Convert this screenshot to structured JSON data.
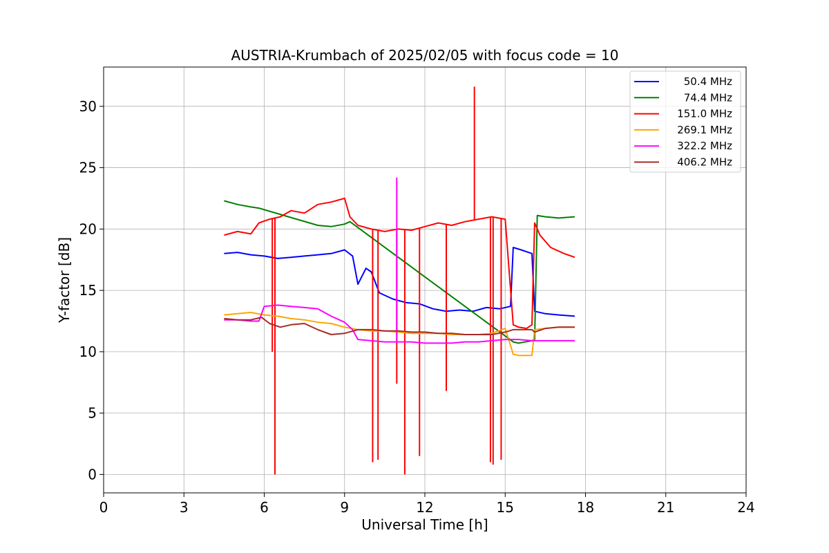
{
  "chart_data": {
    "type": "line",
    "title": "AUSTRIA-Krumbach of 2025/02/05 with focus code = 10",
    "xlabel": "Universal Time [h]",
    "ylabel": "Y-factor [dB]",
    "xlim": [
      0,
      24
    ],
    "ylim": [
      -1.5,
      33.2
    ],
    "xticks": [
      0,
      3,
      6,
      9,
      12,
      15,
      18,
      21,
      24
    ],
    "yticks": [
      0,
      5,
      10,
      15,
      20,
      25,
      30
    ],
    "grid": true,
    "legend_position": "top-right",
    "series": [
      {
        "name": " 50.4 MHz",
        "color": "#0000ff",
        "x": [
          4.5,
          5.0,
          5.5,
          6.0,
          6.5,
          7.0,
          7.5,
          8.0,
          8.5,
          9.0,
          9.3,
          9.5,
          9.8,
          10.0,
          10.3,
          10.8,
          11.3,
          11.8,
          12.3,
          12.8,
          13.3,
          13.8,
          14.3,
          14.8,
          15.2,
          15.3,
          15.6,
          16.0,
          16.1,
          16.5,
          17.0,
          17.6
        ],
        "y": [
          18.0,
          18.1,
          17.9,
          17.8,
          17.6,
          17.7,
          17.8,
          17.9,
          18.0,
          18.3,
          17.8,
          15.5,
          16.8,
          16.5,
          14.8,
          14.3,
          14.0,
          13.9,
          13.5,
          13.3,
          13.4,
          13.3,
          13.6,
          13.5,
          13.7,
          18.5,
          18.3,
          18.0,
          13.3,
          13.1,
          13.0,
          12.9
        ]
      },
      {
        "name": " 74.4 MHz",
        "color": "#008000",
        "x": [
          4.5,
          5.0,
          5.5,
          5.8,
          8.0,
          8.5,
          9.0,
          9.2,
          15.3,
          15.5,
          16.0,
          16.1,
          16.2,
          16.5,
          17.0,
          17.6
        ],
        "y": [
          22.3,
          22.0,
          21.8,
          21.7,
          20.3,
          20.2,
          20.4,
          20.6,
          10.8,
          10.7,
          10.9,
          11.0,
          21.1,
          21.0,
          20.9,
          21.0
        ]
      },
      {
        "name": " 151.0 MHz",
        "color": "#ff0000",
        "x": [
          4.5,
          5.0,
          5.5,
          5.8,
          6.2,
          6.6,
          7.0,
          7.5,
          8.0,
          8.5,
          9.0,
          9.2,
          9.5,
          10.0,
          10.5,
          11.0,
          11.5,
          12.0,
          12.5,
          13.0,
          13.5,
          14.0,
          14.5,
          15.0,
          15.3,
          15.5,
          15.8,
          16.0,
          16.1,
          16.3,
          16.7,
          17.2,
          17.6
        ],
        "y": [
          19.5,
          19.8,
          19.6,
          20.5,
          20.8,
          21.0,
          21.5,
          21.3,
          22.0,
          22.2,
          22.5,
          21.0,
          20.3,
          20.0,
          19.8,
          20.0,
          19.9,
          20.2,
          20.5,
          20.3,
          20.6,
          20.8,
          21.0,
          20.8,
          12.2,
          12.0,
          11.9,
          12.2,
          20.5,
          19.5,
          18.5,
          18.0,
          17.7
        ],
        "spikes": [
          {
            "x": 6.3,
            "y": 10.0
          },
          {
            "x": 6.4,
            "y": 0.0
          },
          {
            "x": 10.05,
            "y": 1.0
          },
          {
            "x": 10.25,
            "y": 1.2
          },
          {
            "x": 10.95,
            "y": 7.4
          },
          {
            "x": 11.25,
            "y": 0.0
          },
          {
            "x": 11.8,
            "y": 1.5
          },
          {
            "x": 12.8,
            "y": 6.8
          },
          {
            "x": 13.85,
            "y": 31.6
          },
          {
            "x": 14.45,
            "y": 1.0
          },
          {
            "x": 14.55,
            "y": 0.8
          },
          {
            "x": 14.85,
            "y": 1.2
          }
        ]
      },
      {
        "name": " 269.1 MHz",
        "color": "#ffa500",
        "x": [
          4.5,
          5.0,
          5.5,
          6.0,
          6.5,
          7.0,
          7.5,
          8.0,
          8.5,
          9.0,
          9.5,
          10.0,
          10.5,
          11.0,
          11.5,
          12.0,
          12.5,
          13.0,
          13.5,
          14.0,
          14.5,
          15.0,
          15.3,
          15.5,
          16.0,
          16.1,
          16.5,
          17.0,
          17.6
        ],
        "y": [
          13.0,
          13.1,
          13.2,
          13.0,
          12.9,
          12.7,
          12.6,
          12.4,
          12.3,
          12.0,
          11.8,
          11.7,
          11.7,
          11.6,
          11.5,
          11.5,
          11.5,
          11.4,
          11.4,
          11.4,
          11.5,
          11.9,
          9.8,
          9.7,
          9.7,
          11.8,
          11.9,
          12.0,
          12.0
        ]
      },
      {
        "name": " 322.2 MHz",
        "color": "#ff00ff",
        "x": [
          4.5,
          5.0,
          5.5,
          5.8,
          6.0,
          6.5,
          7.0,
          7.5,
          8.0,
          8.5,
          9.0,
          9.3,
          9.5,
          10.0,
          10.5,
          11.0,
          11.5,
          12.0,
          12.5,
          13.0,
          13.5,
          14.0,
          14.5,
          15.0,
          15.5,
          16.0,
          16.5,
          17.0,
          17.6
        ],
        "y": [
          12.6,
          12.6,
          12.5,
          12.5,
          13.7,
          13.8,
          13.7,
          13.6,
          13.5,
          12.9,
          12.4,
          11.8,
          11.0,
          10.9,
          10.8,
          10.8,
          10.8,
          10.7,
          10.7,
          10.7,
          10.8,
          10.8,
          10.9,
          11.0,
          11.0,
          10.9,
          10.9,
          10.9,
          10.9
        ],
        "spikes": [
          {
            "x": 10.95,
            "y": 24.2
          }
        ]
      },
      {
        "name": " 406.2 MHz",
        "color": "#a52a2a",
        "x": [
          4.5,
          5.0,
          5.5,
          5.9,
          6.2,
          6.6,
          7.0,
          7.5,
          8.0,
          8.5,
          9.0,
          9.5,
          10.0,
          10.5,
          11.0,
          11.5,
          12.0,
          12.5,
          13.0,
          13.5,
          14.0,
          14.5,
          15.0,
          15.3,
          15.5,
          16.0,
          16.1,
          16.5,
          17.0,
          17.6
        ],
        "y": [
          12.7,
          12.6,
          12.6,
          12.8,
          12.3,
          12.0,
          12.2,
          12.3,
          11.8,
          11.4,
          11.5,
          11.8,
          11.8,
          11.7,
          11.7,
          11.6,
          11.6,
          11.5,
          11.5,
          11.4,
          11.4,
          11.4,
          11.6,
          11.8,
          11.8,
          11.8,
          11.6,
          11.9,
          12.0,
          12.0
        ]
      }
    ]
  }
}
